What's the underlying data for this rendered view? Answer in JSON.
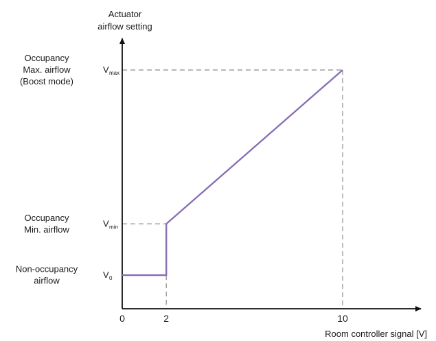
{
  "chart_data": {
    "type": "line",
    "ylabel": [
      "Actuator",
      "airflow setting"
    ],
    "xlabel": "Room controller signal [V]",
    "xticks": [
      {
        "label": "0",
        "value": 0
      },
      {
        "label": "2",
        "value": 2
      },
      {
        "label": "10",
        "value": 10
      }
    ],
    "ylevels": [
      {
        "key": "v0",
        "symbol": "V",
        "sub": "0",
        "level": 0.0,
        "desc": [
          "Non-occupancy",
          "airflow"
        ]
      },
      {
        "key": "vmin",
        "symbol": "V",
        "sub": "min",
        "level": 0.25,
        "desc": [
          "Occupancy",
          "Min. airflow"
        ]
      },
      {
        "key": "vmax",
        "symbol": "V",
        "sub": "max",
        "level": 1.0,
        "desc": [
          "Occupancy",
          "Max. airflow",
          "(Boost mode)"
        ]
      }
    ],
    "series": [
      {
        "points": [
          [
            0,
            "V0"
          ],
          [
            2,
            "V0"
          ],
          [
            2,
            "Vmin"
          ],
          [
            10,
            "Vmax"
          ]
        ]
      }
    ],
    "line_color": "#8a6fb5",
    "axis_color": "#111111",
    "guide_color": "#8c8c8c"
  }
}
